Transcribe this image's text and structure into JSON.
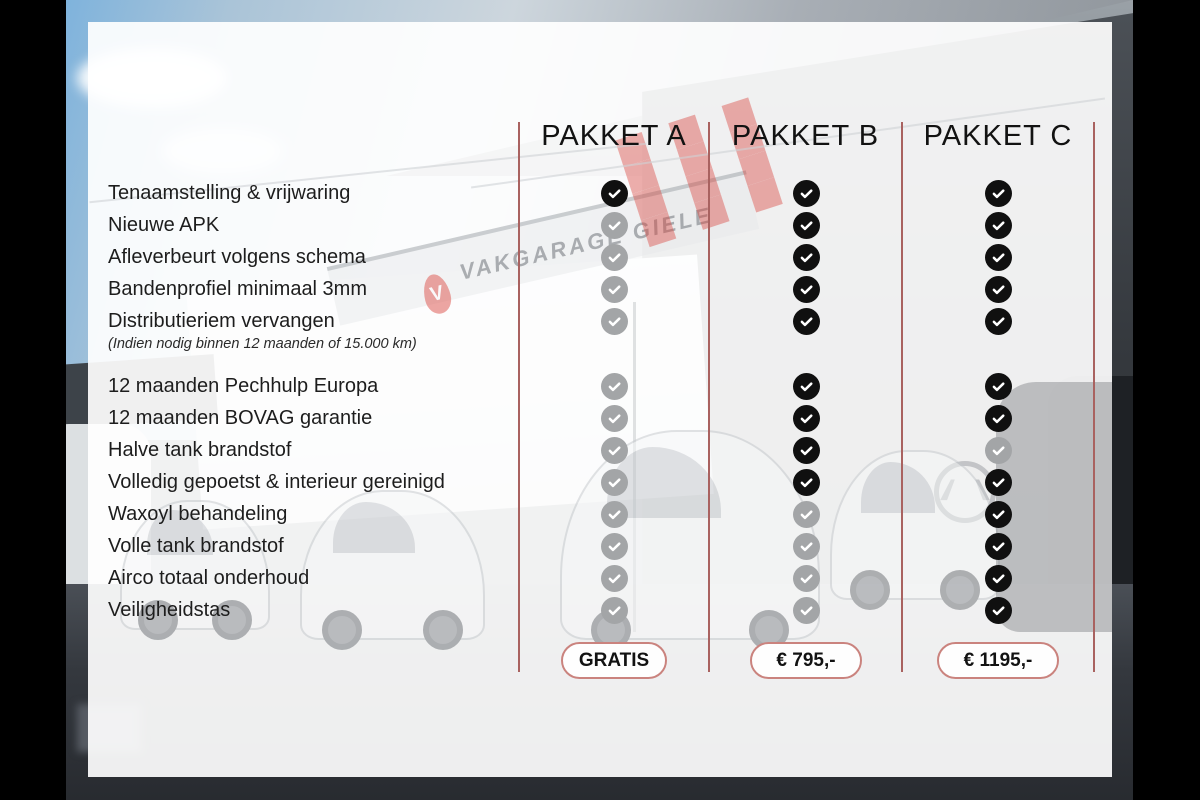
{
  "table": {
    "packages": [
      {
        "name": "PAKKET A",
        "price": "GRATIS"
      },
      {
        "name": "PAKKET B",
        "price": "€ 795,-"
      },
      {
        "name": "PAKKET C",
        "price": "€ 1195,-"
      }
    ],
    "rows": [
      {
        "label": "Tenaamstelling & vrijwaring",
        "checks": [
          true,
          true,
          true
        ]
      },
      {
        "label": "Nieuwe APK",
        "checks": [
          false,
          true,
          true
        ]
      },
      {
        "label": "Afleverbeurt volgens schema",
        "checks": [
          false,
          true,
          true
        ]
      },
      {
        "label": "Bandenprofiel minimaal 3mm",
        "checks": [
          false,
          true,
          true
        ]
      },
      {
        "label": "Distributieriem vervangen",
        "note": "(Indien nodig binnen 12 maanden of 15.000 km)",
        "checks": [
          false,
          true,
          true
        ]
      },
      {
        "label": "12 maanden Pechhulp Europa",
        "checks": [
          false,
          true,
          true
        ]
      },
      {
        "label": "12 maanden BOVAG garantie",
        "checks": [
          false,
          true,
          true
        ]
      },
      {
        "label": "Halve tank brandstof",
        "checks": [
          false,
          true,
          false
        ]
      },
      {
        "label": "Volledig gepoetst & interieur gereinigd",
        "checks": [
          false,
          true,
          true
        ]
      },
      {
        "label": "Waxoyl behandeling",
        "checks": [
          false,
          false,
          true
        ]
      },
      {
        "label": "Volle tank brandstof",
        "checks": [
          false,
          false,
          true
        ]
      },
      {
        "label": "Airco totaal onderhoud",
        "checks": [
          false,
          false,
          true
        ]
      },
      {
        "label": "Veiligheidstas",
        "checks": [
          false,
          false,
          true
        ]
      }
    ]
  },
  "background": {
    "sign_text": "VAKGARAGE GIELE",
    "sign_logo_letter": "V"
  },
  "colors": {
    "check_included": "#101010",
    "check_excluded": "#a3a5a7",
    "divider_line": "#a96260",
    "pill_border": "#ca837e"
  }
}
